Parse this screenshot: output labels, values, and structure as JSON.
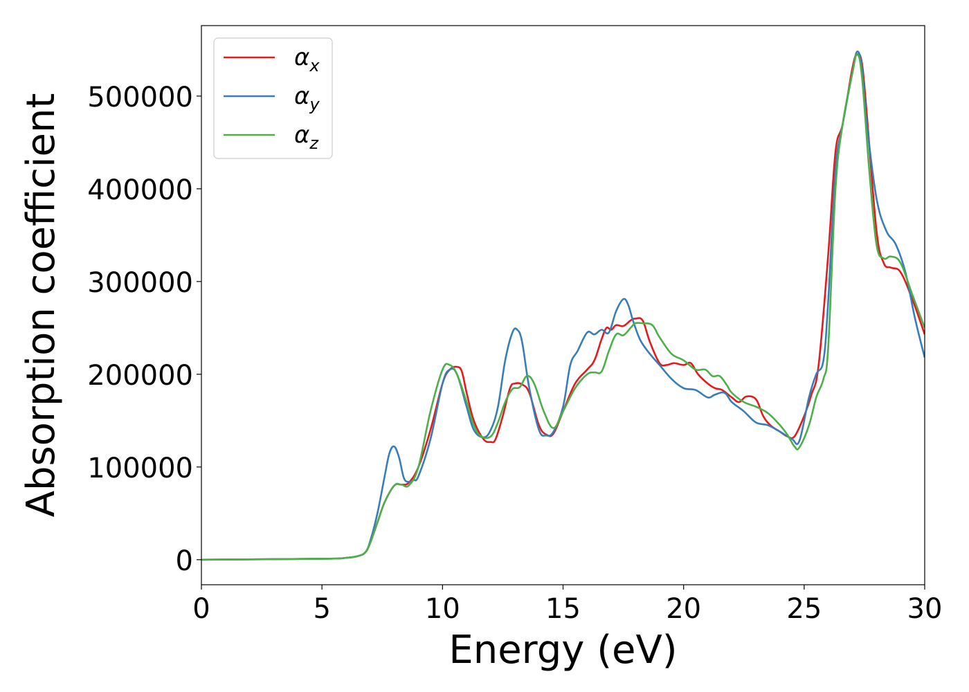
{
  "chart_data": {
    "type": "line",
    "title": "",
    "xlabel": "Energy (eV)",
    "ylabel": "Absorption coefficient",
    "xlim": [
      0,
      30
    ],
    "ylim": [
      -27000,
      576000
    ],
    "xticks": [
      0,
      5,
      10,
      15,
      20,
      25,
      30
    ],
    "xtick_labels": [
      "0",
      "5",
      "10",
      "15",
      "20",
      "25",
      "30"
    ],
    "yticks": [
      0,
      100000,
      200000,
      300000,
      400000,
      500000
    ],
    "ytick_labels": [
      "0",
      "100000",
      "200000",
      "300000",
      "400000",
      "500000"
    ],
    "grid": false,
    "legend_position": "top-left",
    "series": [
      {
        "name": "α_x",
        "label_main": "α",
        "label_sub": "x",
        "color": "#e41a1c",
        "x": [
          0,
          5,
          6,
          6.5,
          6.8,
          7.0,
          7.3,
          7.6,
          8.0,
          8.3,
          8.6,
          9.0,
          9.5,
          10.0,
          10.3,
          10.6,
          10.8,
          11.0,
          11.3,
          11.7,
          12.0,
          12.2,
          12.5,
          12.8,
          13.0,
          13.3,
          13.6,
          14.0,
          14.3,
          14.6,
          15.0,
          15.5,
          16.0,
          16.3,
          16.6,
          16.8,
          17.0,
          17.2,
          17.5,
          17.8,
          18.0,
          18.3,
          18.6,
          19.0,
          19.3,
          19.6,
          20.0,
          20.3,
          20.6,
          21.0,
          21.3,
          21.6,
          22.0,
          22.3,
          22.6,
          23.0,
          23.3,
          23.6,
          24.0,
          24.3,
          24.6,
          25.0,
          25.3,
          25.6,
          26.0,
          26.3,
          26.6,
          27.0,
          27.2,
          27.4,
          27.6,
          28.0,
          28.3,
          28.6,
          29.0,
          29.5,
          30.0
        ],
        "y": [
          0,
          1000,
          2000,
          4000,
          8000,
          18000,
          40000,
          62000,
          80000,
          81000,
          83000,
          100000,
          140000,
          190000,
          205000,
          208000,
          203000,
          180000,
          150000,
          130000,
          127000,
          130000,
          155000,
          185000,
          190000,
          189000,
          180000,
          145000,
          135000,
          136000,
          160000,
          190000,
          205000,
          215000,
          238000,
          250000,
          248000,
          253000,
          252000,
          258000,
          260000,
          258000,
          235000,
          212000,
          210000,
          212000,
          210000,
          212000,
          200000,
          190000,
          185000,
          183000,
          175000,
          170000,
          176000,
          173000,
          155000,
          145000,
          138000,
          133000,
          133000,
          155000,
          178000,
          210000,
          330000,
          440000,
          470000,
          530000,
          545000,
          535000,
          480000,
          355000,
          320000,
          315000,
          310000,
          280000,
          243000
        ]
      },
      {
        "name": "α_y",
        "label_main": "α",
        "label_sub": "y",
        "color": "#377eb8",
        "x": [
          0,
          5,
          6,
          6.5,
          6.8,
          7.0,
          7.3,
          7.6,
          7.8,
          8.0,
          8.2,
          8.4,
          8.6,
          8.8,
          9.0,
          9.5,
          10.0,
          10.3,
          10.6,
          11.0,
          11.3,
          11.7,
          12.0,
          12.3,
          12.6,
          12.9,
          13.1,
          13.3,
          13.6,
          14.0,
          14.3,
          14.6,
          15.0,
          15.3,
          15.6,
          16.0,
          16.3,
          16.6,
          16.9,
          17.2,
          17.5,
          17.7,
          17.9,
          18.2,
          18.6,
          19.0,
          19.5,
          20.0,
          20.5,
          21.0,
          21.3,
          21.7,
          22.0,
          22.5,
          23.0,
          23.5,
          24.0,
          24.5,
          24.8,
          25.2,
          25.5,
          25.8,
          26.0,
          26.3,
          26.6,
          27.0,
          27.2,
          27.4,
          27.6,
          28.0,
          28.4,
          28.8,
          29.2,
          29.6,
          30.0
        ],
        "y": [
          0,
          1000,
          2000,
          4000,
          8000,
          20000,
          50000,
          90000,
          115000,
          122000,
          110000,
          88000,
          84000,
          86000,
          90000,
          130000,
          190000,
          205000,
          200000,
          165000,
          140000,
          132000,
          140000,
          165000,
          215000,
          245000,
          248000,
          235000,
          185000,
          140000,
          134000,
          138000,
          165000,
          210000,
          225000,
          245000,
          243000,
          248000,
          245000,
          268000,
          281000,
          275000,
          258000,
          237000,
          222000,
          210000,
          195000,
          185000,
          183000,
          175000,
          178000,
          180000,
          170000,
          160000,
          148000,
          145000,
          138000,
          130000,
          128000,
          175000,
          200000,
          215000,
          280000,
          420000,
          470000,
          525000,
          548000,
          530000,
          470000,
          390000,
          355000,
          340000,
          310000,
          260000,
          218000
        ]
      },
      {
        "name": "α_z",
        "label_main": "α",
        "label_sub": "z",
        "color": "#4daf4a",
        "x": [
          0,
          5,
          6,
          6.5,
          6.8,
          7.0,
          7.3,
          7.6,
          8.0,
          8.3,
          8.6,
          9.0,
          9.5,
          10.0,
          10.3,
          10.6,
          11.0,
          11.3,
          11.6,
          12.0,
          12.3,
          12.6,
          12.9,
          13.2,
          13.5,
          13.8,
          14.2,
          14.6,
          15.0,
          15.5,
          16.0,
          16.3,
          16.6,
          16.9,
          17.2,
          17.5,
          17.8,
          18.0,
          18.3,
          18.7,
          19.0,
          19.5,
          20.0,
          20.5,
          20.9,
          21.2,
          21.5,
          21.8,
          22.0,
          22.5,
          23.0,
          23.5,
          24.0,
          24.3,
          24.6,
          24.8,
          25.2,
          25.5,
          25.8,
          26.0,
          26.3,
          26.6,
          27.0,
          27.2,
          27.4,
          27.7,
          28.0,
          28.3,
          28.6,
          29.0,
          29.5,
          30.0
        ],
        "y": [
          0,
          1000,
          2000,
          4000,
          8000,
          18000,
          40000,
          62000,
          80000,
          81000,
          80000,
          100000,
          160000,
          205000,
          210000,
          200000,
          170000,
          145000,
          133000,
          133000,
          148000,
          170000,
          184000,
          186000,
          198000,
          190000,
          160000,
          142000,
          160000,
          185000,
          200000,
          202000,
          203000,
          225000,
          243000,
          242000,
          250000,
          255000,
          255000,
          253000,
          240000,
          222000,
          215000,
          205000,
          205000,
          198000,
          198000,
          188000,
          180000,
          170000,
          165000,
          158000,
          145000,
          135000,
          122000,
          121000,
          145000,
          175000,
          195000,
          230000,
          400000,
          470000,
          525000,
          545000,
          520000,
          420000,
          340000,
          325000,
          327000,
          320000,
          285000,
          250000
        ]
      }
    ]
  }
}
